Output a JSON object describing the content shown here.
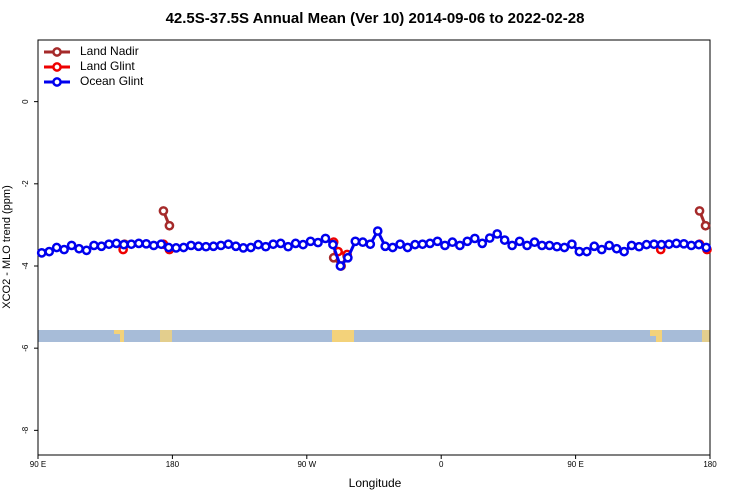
{
  "chart_data": {
    "type": "line",
    "title": "42.5S-37.5S Annual Mean (Ver 10)   2014-09-06 to 2022-02-28",
    "xlabel": "Longitude",
    "ylabel": "XCO2 - MLO trend (ppm)",
    "xlim": [
      90,
      540
    ],
    "xticks": [
      {
        "value": 90,
        "label": "90 E"
      },
      {
        "value": 180,
        "label": "180"
      },
      {
        "value": 270,
        "label": "90 W"
      },
      {
        "value": 360,
        "label": "0"
      },
      {
        "value": 450,
        "label": "90 E"
      },
      {
        "value": 540,
        "label": "180"
      }
    ],
    "ylim": [
      -8.6,
      1.5
    ],
    "yticks": [
      0,
      -2,
      -4,
      -6,
      -8
    ],
    "legend": "top-left",
    "series": [
      {
        "name": "Land Nadir",
        "color": "#a52a2a",
        "x": [
          148,
          174,
          178,
          288,
          293,
          297,
          533,
          537
        ],
        "values": [
          -3.47,
          -2.66,
          -3.02,
          -3.8,
          -4.0,
          -3.76,
          -2.66,
          -3.02
        ]
      },
      {
        "name": "Land Glint",
        "color": "#ee0000",
        "x": [
          147,
          174,
          178,
          288,
          291,
          297,
          507,
          533,
          538
        ],
        "values": [
          -3.6,
          -3.47,
          -3.6,
          -3.42,
          -3.65,
          -3.72,
          -3.6,
          -3.47,
          -3.6
        ]
      },
      {
        "name": "Ocean Glint",
        "color": "#0000ee",
        "x": [
          92.5,
          97.5,
          102.5,
          107.5,
          112.5,
          117.5,
          122.5,
          127.5,
          132.5,
          137.5,
          142.5,
          147.5,
          152.5,
          157.5,
          162.5,
          167.5,
          172.5,
          177.5,
          182.5,
          187.5,
          192.5,
          197.5,
          202.5,
          207.5,
          212.5,
          217.5,
          222.5,
          227.5,
          232.5,
          237.5,
          242.5,
          247.5,
          252.5,
          257.5,
          262.5,
          267.5,
          272.5,
          277.5,
          282.5,
          287.5,
          292.5,
          297.5,
          302.5,
          307.5,
          312.5,
          317.5,
          322.5,
          327.5,
          332.5,
          337.5,
          342.5,
          347.5,
          352.5,
          357.5,
          362.5,
          367.5,
          372.5,
          377.5,
          382.5,
          387.5,
          392.5,
          397.5,
          402.5,
          407.5,
          412.5,
          417.5,
          422.5,
          427.5,
          432.5,
          437.5,
          442.5,
          447.5,
          452.5,
          457.5,
          462.5,
          467.5,
          472.5,
          477.5,
          482.5,
          487.5,
          492.5,
          497.5,
          502.5,
          507.5,
          512.5,
          517.5,
          522.5,
          527.5,
          532.5,
          537.5
        ],
        "values": [
          -3.68,
          -3.65,
          -3.55,
          -3.6,
          -3.5,
          -3.58,
          -3.62,
          -3.5,
          -3.52,
          -3.47,
          -3.45,
          -3.48,
          -3.47,
          -3.45,
          -3.46,
          -3.5,
          -3.47,
          -3.55,
          -3.56,
          -3.55,
          -3.5,
          -3.52,
          -3.53,
          -3.52,
          -3.5,
          -3.47,
          -3.52,
          -3.56,
          -3.55,
          -3.48,
          -3.53,
          -3.47,
          -3.45,
          -3.53,
          -3.45,
          -3.48,
          -3.4,
          -3.43,
          -3.33,
          -3.48,
          -4.0,
          -3.8,
          -3.4,
          -3.42,
          -3.47,
          -3.15,
          -3.52,
          -3.55,
          -3.47,
          -3.55,
          -3.48,
          -3.47,
          -3.45,
          -3.4,
          -3.5,
          -3.42,
          -3.5,
          -3.4,
          -3.33,
          -3.45,
          -3.32,
          -3.22,
          -3.37,
          -3.5,
          -3.4,
          -3.5,
          -3.42,
          -3.5,
          -3.5,
          -3.53,
          -3.55,
          -3.47,
          -3.65,
          -3.65,
          -3.52,
          -3.6,
          -3.5,
          -3.58,
          -3.65,
          -3.5,
          -3.53,
          -3.48,
          -3.47,
          -3.48,
          -3.47,
          -3.45,
          -3.46,
          -3.5,
          -3.48,
          -3.55
        ]
      }
    ]
  }
}
